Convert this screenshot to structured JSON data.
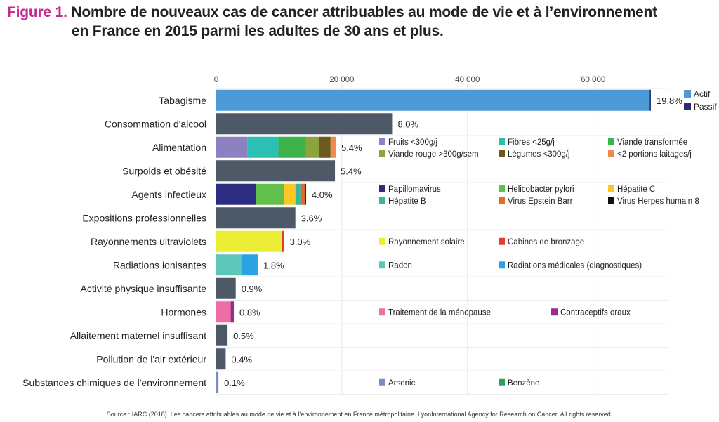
{
  "title": {
    "figure_label": "Figure 1.",
    "line1": "Nombre de nouveaux cas de cancer attribuables au mode de vie et à l’environnement",
    "line2": "en France en 2015 parmi les adultes de 30 ans et plus."
  },
  "source": "Source : IARC (2018). Les cancers attribuables au mode de vie et à l’environnement en France métropolitaine. LyonInternational Agency for Research on Cancer. All rights reserved.",
  "colors": {
    "Actif": "#4c9ad8",
    "Passif": "#2c2c75",
    "default": "#4d5966",
    "Fruits <300g/j": "#8e81c2",
    "Fibres <25g/j": "#2cbfb4",
    "Viande transformée": "#3cb249",
    "Viande rouge >300g/sem": "#8ea33d",
    "Légumes <300g/j": "#6a5a1c",
    "<2 portions laitages/j": "#ee8a4b",
    "Papillomavirus": "#2b2e80",
    "Helicobacter pylori": "#62bf4c",
    "Hépatite C": "#fbc726",
    "Hépatite B": "#38b59e",
    "Virus Epstein Barr": "#e16a2a",
    "Virus Herpes humain 8": "#111111",
    "Rayonnement solaire": "#eced35",
    "Cabines de bronzage": "#e53c31",
    "Radon": "#5ec6b9",
    "Radiations médicales (diagnostiques)": "#2aa2e3",
    "Traitement de la ménopause": "#ee6fa6",
    "Contraceptifs oraux": "#9c2a8f",
    "Arsenic": "#7b8cc4",
    "Benzène": "#2aa15a"
  },
  "chart_data": {
    "type": "bar",
    "orientation": "horizontal",
    "stacked": true,
    "xlim": [
      0,
      72000
    ],
    "xticks": [
      0,
      20000,
      40000,
      60000
    ],
    "xtick_labels": [
      "0",
      "20 000",
      "40 000",
      "60 000"
    ],
    "legend_main": [
      "Actif",
      "Passif"
    ],
    "categories": [
      {
        "label": "Tabagisme",
        "pct": "19.8%",
        "segments": [
          {
            "name": "Actif",
            "value": 69000
          },
          {
            "name": "Passif",
            "value": 200
          }
        ]
      },
      {
        "label": "Consommation d'alcool",
        "pct": "8.0%",
        "segments": [
          {
            "name": "default",
            "value": 28000
          }
        ]
      },
      {
        "label": "Alimentation",
        "pct": "5.4%",
        "segments": [
          {
            "name": "Fruits <300g/j",
            "value": 5000
          },
          {
            "name": "Fibres <25g/j",
            "value": 4900
          },
          {
            "name": "Viande transformée",
            "value": 4400
          },
          {
            "name": "Viande rouge >300g/sem",
            "value": 2100
          },
          {
            "name": "Légumes <300g/j",
            "value": 1800
          },
          {
            "name": "<2 portions laitages/j",
            "value": 800
          }
        ],
        "legend": [
          "Fruits <300g/j",
          "Fibres <25g/j",
          "Viande transformée",
          "Viande rouge >300g/sem",
          "Légumes <300g/j",
          "<2 portions laitages/j"
        ]
      },
      {
        "label": "Surpoids et obésité",
        "pct": "5.4%",
        "segments": [
          {
            "name": "default",
            "value": 18900
          }
        ]
      },
      {
        "label": "Agents infectieux",
        "pct": "4.0%",
        "segments": [
          {
            "name": "Papillomavirus",
            "value": 6300
          },
          {
            "name": "Helicobacter pylori",
            "value": 4500
          },
          {
            "name": "Hépatite C",
            "value": 1800
          },
          {
            "name": "Hépatite B",
            "value": 800
          },
          {
            "name": "Virus Epstein Barr",
            "value": 700
          },
          {
            "name": "Virus Herpes humain 8",
            "value": 200
          }
        ],
        "legend": [
          "Papillomavirus",
          "Helicobacter pylori",
          "Hépatite C",
          "Hépatite B",
          "Virus Epstein Barr",
          "Virus Herpes humain 8"
        ]
      },
      {
        "label": "Expositions professionnelles",
        "pct": "3.6%",
        "segments": [
          {
            "name": "default",
            "value": 12600
          }
        ]
      },
      {
        "label": "Rayonnements ultraviolets",
        "pct": "3.0%",
        "segments": [
          {
            "name": "Rayonnement solaire",
            "value": 10400
          },
          {
            "name": "Cabines de bronzage",
            "value": 400
          }
        ],
        "legend": [
          "Rayonnement solaire",
          "Cabines de bronzage"
        ]
      },
      {
        "label": "Radiations ionisantes",
        "pct": "1.8%",
        "segments": [
          {
            "name": "Radon",
            "value": 4100
          },
          {
            "name": "Radiations médicales (diagnostiques)",
            "value": 2500
          }
        ],
        "legend": [
          "Radon",
          "Radiations médicales (diagnostiques)"
        ]
      },
      {
        "label": "Activité physique insuffisante",
        "pct": "0.9%",
        "segments": [
          {
            "name": "default",
            "value": 3100
          }
        ]
      },
      {
        "label": "Hormones",
        "pct": "0.8%",
        "segments": [
          {
            "name": "Traitement de la ménopause",
            "value": 2300
          },
          {
            "name": "Contraceptifs oraux",
            "value": 500
          }
        ],
        "legend": [
          "Traitement de la ménopause",
          "Contraceptifs oraux"
        ]
      },
      {
        "label": "Allaitement maternel insuffisant",
        "pct": "0.5%",
        "segments": [
          {
            "name": "default",
            "value": 1800
          }
        ]
      },
      {
        "label": "Pollution de l'air extérieur",
        "pct": "0.4%",
        "segments": [
          {
            "name": "default",
            "value": 1500
          }
        ]
      },
      {
        "label": "Substances chimiques de l'environnement",
        "pct": "0.1%",
        "segments": [
          {
            "name": "Arsenic",
            "value": 350
          },
          {
            "name": "Benzène",
            "value": 0
          }
        ],
        "legend": [
          "Arsenic",
          "Benzène"
        ]
      }
    ]
  }
}
